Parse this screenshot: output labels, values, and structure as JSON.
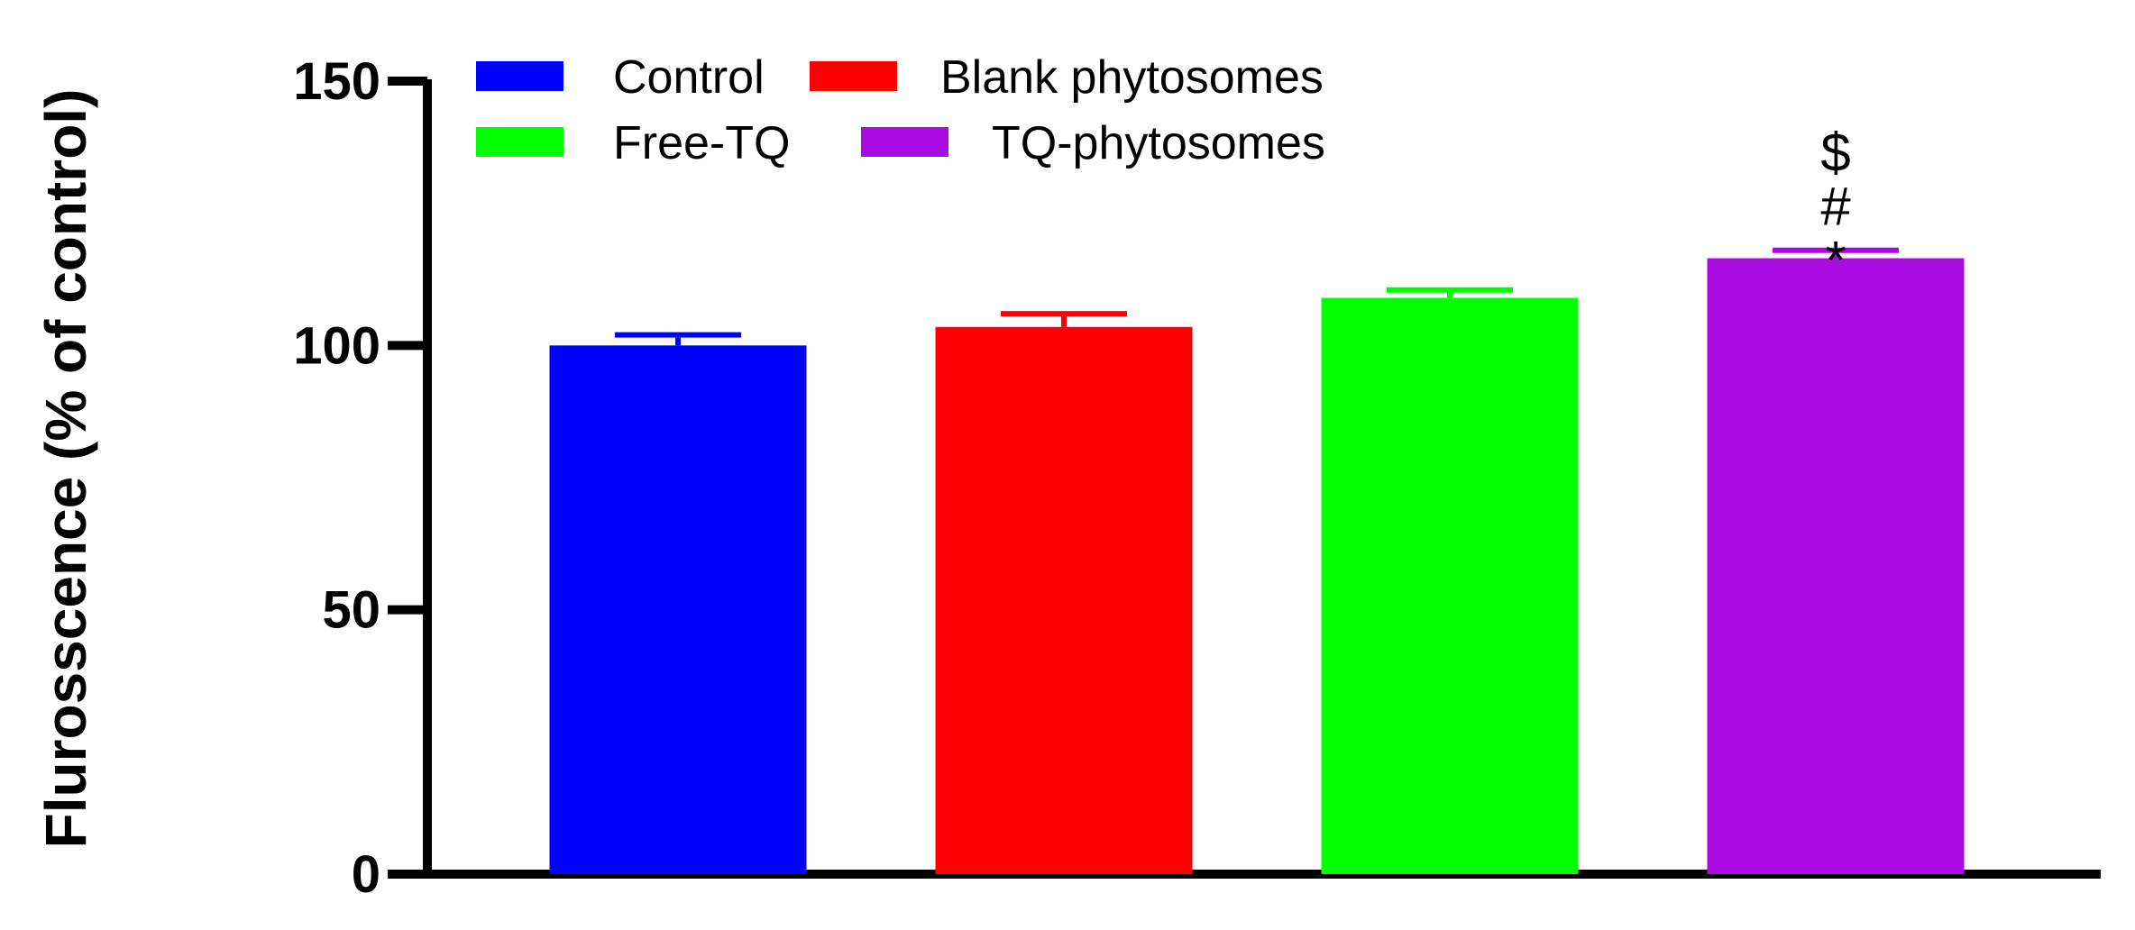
{
  "chart_data": {
    "type": "bar",
    "title": "",
    "xlabel": "",
    "ylabel": "Flurosscence (% of control)",
    "ylim": [
      0,
      150
    ],
    "yticks": [
      0,
      50,
      100,
      150
    ],
    "categories": [
      "Control",
      "Blank phytosomes",
      "Free-TQ",
      "TQ-phytosomes"
    ],
    "values": [
      100,
      103.5,
      109,
      116.5
    ],
    "errors": [
      2,
      2.5,
      1.5,
      1.5
    ],
    "colors": [
      "#0000FF",
      "#FF0000",
      "#00FF00",
      "#AA0BE3"
    ],
    "annotations": [
      {
        "category": "TQ-phytosomes",
        "marks": [
          "$",
          "#",
          "*"
        ]
      }
    ],
    "legend": {
      "placement": "top-left",
      "entries": [
        {
          "label": "Control",
          "color": "#0000FF"
        },
        {
          "label": "Blank phytosomes",
          "color": "#FF0000"
        },
        {
          "label": "Free-TQ",
          "color": "#00FF00"
        },
        {
          "label": "TQ-phytosomes",
          "color": "#AA0BE3"
        }
      ]
    },
    "grid": false
  }
}
